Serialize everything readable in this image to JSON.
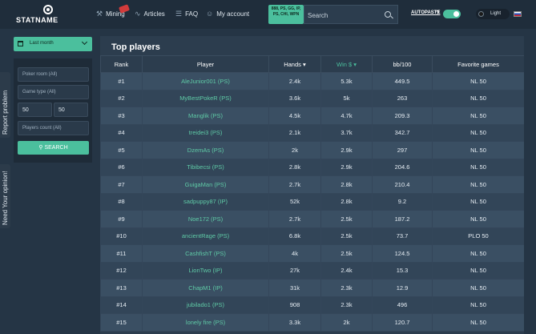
{
  "header": {
    "logo": "STATNAME",
    "nav": [
      {
        "label": "Mining",
        "icon": "pickaxe-icon"
      },
      {
        "label": "Articles",
        "icon": "rss-icon"
      },
      {
        "label": "FAQ",
        "icon": "faq-icon"
      },
      {
        "label": "My account",
        "icon": "user-icon"
      }
    ],
    "room_filter": "888, PS, GG, IP, PS, CHI, WPN",
    "search_placeholder": "Search",
    "autopaste": "AUTOPASTE",
    "help": "?",
    "autopaste_enabled": true,
    "theme_label": "Light",
    "accent_color": "#4bbf9d"
  },
  "side_tabs": {
    "report": "Report problem",
    "opinion": "Need Your opinion!"
  },
  "filters": {
    "period": "Last month",
    "poker_room": "Poker room (All)",
    "game_type": "Game type (All)",
    "min": "50",
    "max": "50",
    "players_count": "Players count (All)",
    "search_button": "SEARCH"
  },
  "main": {
    "title": "Top players",
    "columns": [
      "Rank",
      "Player",
      "Hands",
      "Win $",
      "bb/100",
      "Favorite games"
    ],
    "rows": [
      {
        "rank": "#1",
        "player": "AleJunior001 (PS)",
        "hands": "2.4k",
        "win": "5.3k",
        "bb": "449.5",
        "fav": "NL 50"
      },
      {
        "rank": "#2",
        "player": "MyBestPokeR (PS)",
        "hands": "3.6k",
        "win": "5k",
        "bb": "263",
        "fav": "NL 50"
      },
      {
        "rank": "#3",
        "player": "Manglik (PS)",
        "hands": "4.5k",
        "win": "4.7k",
        "bb": "209.3",
        "fav": "NL 50"
      },
      {
        "rank": "#4",
        "player": "treidei3 (PS)",
        "hands": "2.1k",
        "win": "3.7k",
        "bb": "342.7",
        "fav": "NL 50"
      },
      {
        "rank": "#5",
        "player": "DzemAs (PS)",
        "hands": "2k",
        "win": "2.9k",
        "bb": "297",
        "fav": "NL 50"
      },
      {
        "rank": "#6",
        "player": "Tibibecsi (PS)",
        "hands": "2.8k",
        "win": "2.9k",
        "bb": "204.6",
        "fav": "NL 50"
      },
      {
        "rank": "#7",
        "player": "GuigaMan (PS)",
        "hands": "2.7k",
        "win": "2.8k",
        "bb": "210.4",
        "fav": "NL 50"
      },
      {
        "rank": "#8",
        "player": "sadpuppy87 (IP)",
        "hands": "52k",
        "win": "2.8k",
        "bb": "9.2",
        "fav": "NL 50"
      },
      {
        "rank": "#9",
        "player": "Noe172 (PS)",
        "hands": "2.7k",
        "win": "2.5k",
        "bb": "187.2",
        "fav": "NL 50"
      },
      {
        "rank": "#10",
        "player": "ancientRage (PS)",
        "hands": "6.8k",
        "win": "2.5k",
        "bb": "73.7",
        "fav": "PLO 50"
      },
      {
        "rank": "#11",
        "player": "CashfishT (PS)",
        "hands": "4k",
        "win": "2.5k",
        "bb": "124.5",
        "fav": "NL 50"
      },
      {
        "rank": "#12",
        "player": "LionTwo (IP)",
        "hands": "27k",
        "win": "2.4k",
        "bb": "15.3",
        "fav": "NL 50"
      },
      {
        "rank": "#13",
        "player": "ChapM1 (IP)",
        "hands": "31k",
        "win": "2.3k",
        "bb": "12.9",
        "fav": "NL 50"
      },
      {
        "rank": "#14",
        "player": "jubilado1 (PS)",
        "hands": "908",
        "win": "2.3k",
        "bb": "496",
        "fav": "NL 50"
      },
      {
        "rank": "#15",
        "player": "lonely fire (PS)",
        "hands": "3.3k",
        "win": "2k",
        "bb": "120.7",
        "fav": "NL 50"
      }
    ]
  }
}
